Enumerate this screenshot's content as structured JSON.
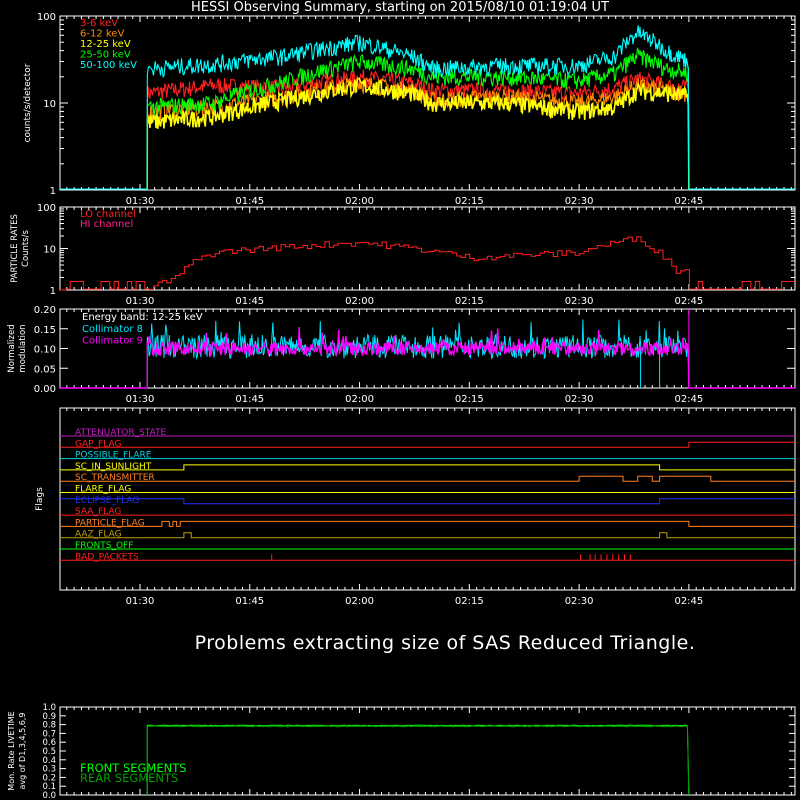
{
  "title": "HESSI Observing Summary, starting on 2015/08/10 01:19:04 UT",
  "message": "Problems extracting size of SAS Reduced Triangle.",
  "time_ticks": [
    "01:30",
    "01:45",
    "02:00",
    "02:15",
    "02:30",
    "02:45"
  ],
  "chart_data": [
    {
      "id": "count-rates",
      "type": "line",
      "ylabel": "counts/s/detector",
      "yscale": "log",
      "ylim": [
        1,
        100
      ],
      "yticks": [
        "1",
        "10",
        "100"
      ],
      "x_unit": "UT",
      "x": [
        "01:31",
        "01:40",
        "01:50",
        "02:00",
        "02:07",
        "02:10",
        "02:20",
        "02:30",
        "02:35",
        "02:38",
        "02:42",
        "02:45"
      ],
      "series": [
        {
          "name": "3-6 keV",
          "color": "#ff2020",
          "values": [
            13,
            16,
            15,
            20,
            17,
            14,
            14,
            13,
            15,
            19,
            16,
            15
          ]
        },
        {
          "name": "6-12 keV",
          "color": "#ff8c00",
          "values": [
            8,
            9,
            12,
            17,
            14,
            11,
            12,
            10,
            12,
            16,
            14,
            13
          ]
        },
        {
          "name": "12-25 keV",
          "color": "#ffff00",
          "values": [
            6,
            7,
            11,
            16,
            13,
            10,
            10,
            8,
            9,
            14,
            13,
            12
          ]
        },
        {
          "name": "25-50 keV",
          "color": "#00ff00",
          "values": [
            9,
            10,
            18,
            30,
            25,
            20,
            20,
            18,
            22,
            35,
            25,
            22
          ]
        },
        {
          "name": "50-100 keV",
          "color": "#00ffff",
          "values": [
            25,
            28,
            35,
            50,
            35,
            25,
            27,
            27,
            35,
            65,
            40,
            30
          ]
        }
      ]
    },
    {
      "id": "particle-rates",
      "type": "line",
      "ylabel": "PARTICLE RATES",
      "ylabel2": "Counts/s",
      "yscale": "log",
      "ylim": [
        1,
        100
      ],
      "yticks": [
        "1",
        "10",
        "100"
      ],
      "x": [
        "01:31",
        "01:35",
        "01:40",
        "02:00",
        "02:15",
        "02:30",
        "02:38",
        "02:40",
        "02:43"
      ],
      "series": [
        {
          "name": "LO channel",
          "color": "#ff2020",
          "values": [
            1,
            2,
            8,
            14,
            6,
            8,
            18,
            10,
            3
          ]
        },
        {
          "name": "HI channel",
          "color": "#ff2090",
          "values": [
            1,
            1,
            1,
            1,
            1,
            1,
            1,
            1,
            1
          ]
        }
      ]
    },
    {
      "id": "modulation",
      "type": "line",
      "ylabel": "Normalized",
      "ylabel2": "modulation",
      "ylim": [
        0.0,
        0.2
      ],
      "yticks": [
        "0.00",
        "0.05",
        "0.10",
        "0.15",
        "0.20"
      ],
      "annotation": "Energy band: 12-25 keV",
      "series": [
        {
          "name": "Collimator 8",
          "color": "#00e5ff",
          "mean": 0.105
        },
        {
          "name": "Collimator 9",
          "color": "#ff00ff",
          "mean": 0.1
        }
      ]
    },
    {
      "id": "flags",
      "type": "table",
      "ylabel": "Flags",
      "rows": [
        {
          "name": "ATTENUATOR_STATE",
          "color": "#c020c0"
        },
        {
          "name": "GAP_FLAG",
          "color": "#ff2020"
        },
        {
          "name": "POSSIBLE_FLARE",
          "color": "#00d0e0"
        },
        {
          "name": "SC_IN_SUNLIGHT",
          "color": "#ffff00"
        },
        {
          "name": "SC_TRANSMITTER",
          "color": "#ff8020"
        },
        {
          "name": "FLARE_FLAG",
          "color": "#ffff00"
        },
        {
          "name": "ECLIPSE_FLAG",
          "color": "#2030ff"
        },
        {
          "name": "SAA_FLAG",
          "color": "#ff2020"
        },
        {
          "name": "PARTICLE_FLAG",
          "color": "#ff8020"
        },
        {
          "name": "AAZ_FLAG",
          "color": "#c0a000"
        },
        {
          "name": "FRONTS_OFF",
          "color": "#00ff00"
        },
        {
          "name": "BAD_PACKETS",
          "color": "#ff2020"
        }
      ]
    },
    {
      "id": "livetime",
      "type": "line",
      "ylabel": "Mon. Rate LIVETIME",
      "ylabel2": "avg of D1,3,4,5,6,9",
      "ylim": [
        0.0,
        1.0
      ],
      "yticks": [
        "0.0",
        "0.1",
        "0.2",
        "0.3",
        "0.4",
        "0.5",
        "0.6",
        "0.7",
        "0.8",
        "0.9",
        "1.0"
      ],
      "series": [
        {
          "name": "FRONT SEGMENTS",
          "color": "#00ff00",
          "value": 0.79
        },
        {
          "name": "REAR SEGMENTS",
          "color": "#00a000",
          "value": 0.78
        }
      ]
    }
  ]
}
